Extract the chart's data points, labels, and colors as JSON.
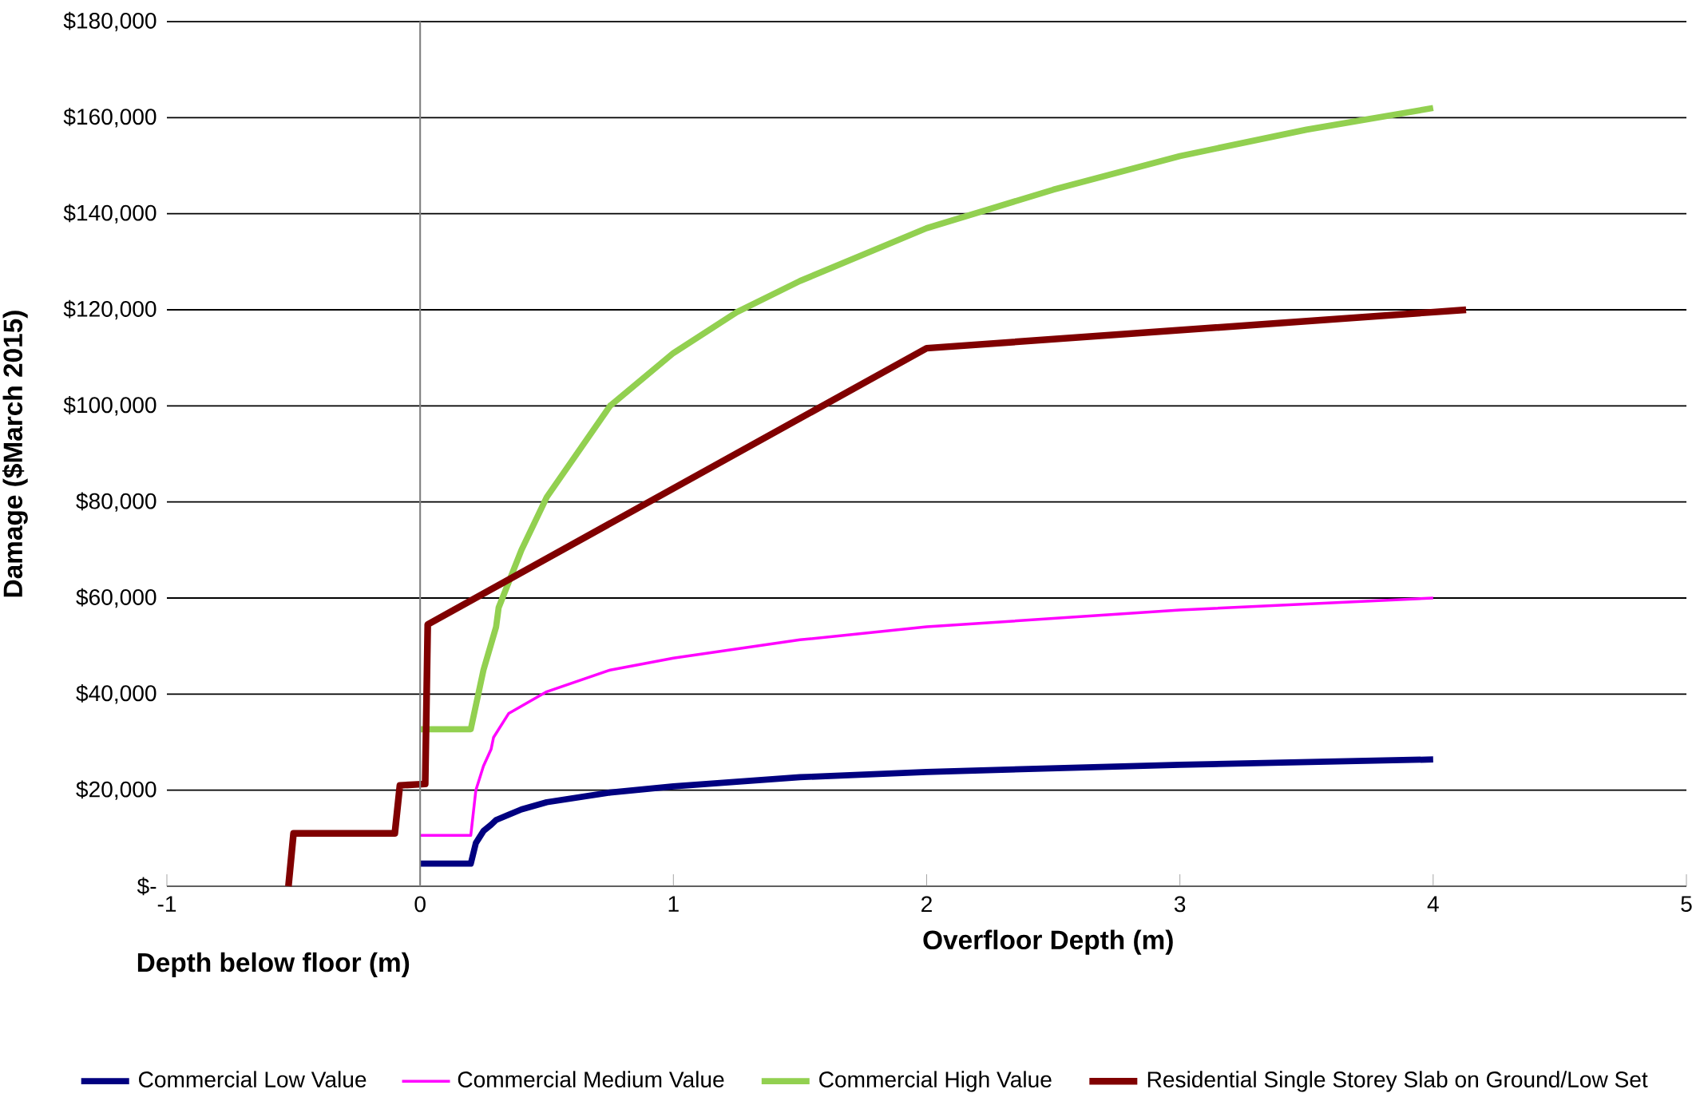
{
  "chart_data": {
    "type": "line",
    "xlabel": "Overfloor Depth (m)",
    "ylabel": "Damage ($March 2015)",
    "annotations": [
      "Depth below floor (m)"
    ],
    "xlim": [
      -1,
      5
    ],
    "xticks": [
      -1,
      0,
      1,
      2,
      3,
      4,
      5
    ],
    "ylim": [
      0,
      180000
    ],
    "yticks": [
      {
        "value": 0,
        "label": "$-"
      },
      {
        "value": 20000,
        "label": "$20,000"
      },
      {
        "value": 40000,
        "label": "$40,000"
      },
      {
        "value": 60000,
        "label": "$60,000"
      },
      {
        "value": 80000,
        "label": "$80,000"
      },
      {
        "value": 100000,
        "label": "$100,000"
      },
      {
        "value": 120000,
        "label": "$120,000"
      },
      {
        "value": 140000,
        "label": "$140,000"
      },
      {
        "value": 160000,
        "label": "$160,000"
      },
      {
        "value": 180000,
        "label": "$180,000"
      }
    ],
    "grid": "y",
    "legend": "bottom",
    "marker": "none",
    "line_style": "solid",
    "ref_lines": [
      {
        "axis": "x",
        "value": 0,
        "color": "#808080"
      }
    ],
    "series": [
      {
        "name": "Commercial Low Value",
        "color": "#000080",
        "x": [
          0,
          0.2,
          0.22,
          0.25,
          0.28,
          0.3,
          0.4,
          0.5,
          0.75,
          1,
          1.5,
          2,
          3,
          4
        ],
        "values": [
          4700,
          4700,
          9000,
          11500,
          12800,
          13800,
          16000,
          17500,
          19500,
          20800,
          22700,
          23800,
          25300,
          26400
        ]
      },
      {
        "name": "Commercial Medium Value",
        "color": "#ff00ff",
        "x": [
          0,
          0.2,
          0.22,
          0.25,
          0.28,
          0.29,
          0.35,
          0.5,
          0.75,
          1,
          1.5,
          2,
          3,
          4
        ],
        "values": [
          10600,
          10600,
          20000,
          25000,
          28500,
          31000,
          36000,
          40500,
          45000,
          47500,
          51300,
          54000,
          57500,
          60000
        ]
      },
      {
        "name": "Commercial High Value",
        "color": "#92d050",
        "x": [
          0,
          0.2,
          0.25,
          0.3,
          0.31,
          0.4,
          0.5,
          0.75,
          1,
          1.25,
          1.5,
          2,
          2.5,
          3,
          3.5,
          4
        ],
        "values": [
          32700,
          32700,
          45000,
          54000,
          58000,
          70000,
          81000,
          100000,
          111000,
          119500,
          126000,
          137000,
          145000,
          152000,
          157500,
          162000
        ]
      },
      {
        "name": "Residential Single Storey Slab on Ground/Low Set",
        "color": "#800000",
        "x": [
          -0.52,
          -0.5,
          -0.1,
          -0.08,
          0.02,
          0.03,
          2,
          4.13
        ],
        "values": [
          0,
          11000,
          11000,
          21000,
          21300,
          54500,
          112000,
          120000
        ]
      }
    ]
  }
}
